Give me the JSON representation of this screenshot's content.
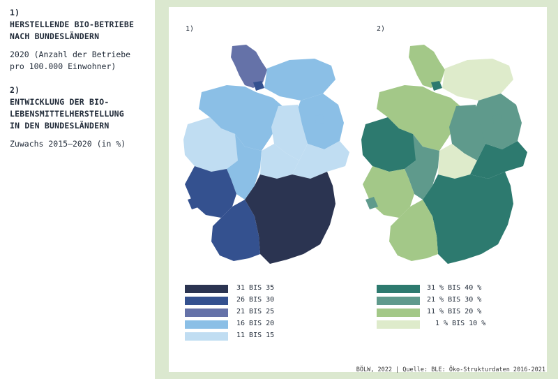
{
  "left": {
    "section1_number": "1)",
    "section1_title_line1": "HERSTELLENDE BIO-BETRIEBE",
    "section1_title_line2": "NACH BUNDESLÄNDERN",
    "section1_sub_line1": "2020 (Anzahl der Betriebe",
    "section1_sub_line2": "pro 100.000 Einwohner)",
    "section2_number": "2)",
    "section2_title_line1": "ENTWICKLUNG DER BIO-",
    "section2_title_line2": "LEBENSMITTELHERSTELLUNG",
    "section2_title_line3": "IN DEN BUNDESLÄNDERN",
    "section2_sub": "Zuwachs 2015–2020 (in %)"
  },
  "map1": {
    "label": "1)",
    "legend": [
      {
        "label": "31 BIS 35",
        "color": "#2b3451"
      },
      {
        "label": "26 BIS 30",
        "color": "#34518f"
      },
      {
        "label": "21 BIS 25",
        "color": "#6572a8"
      },
      {
        "label": "16 BIS 20",
        "color": "#8bbfe6"
      },
      {
        "label": "11 BIS 15",
        "color": "#c0ddf2"
      }
    ]
  },
  "map2": {
    "label": "2)",
    "legend": [
      {
        "label": "31 % BIS 40 %",
        "color": "#2d7a6f"
      },
      {
        "label": "21 % BIS 30 %",
        "color": "#5f9a8c"
      },
      {
        "label": "11 % BIS 20 %",
        "color": "#a3c888"
      },
      {
        "label": "1 % BIS 10 %",
        "color": "#deebcb"
      }
    ]
  },
  "credit": "BÖLW, 2022 | Quelle: BLE: Öko-Strukturdaten 2016-2021",
  "colors": {
    "frame": "#dbe8cf",
    "border": "#ffffff"
  }
}
